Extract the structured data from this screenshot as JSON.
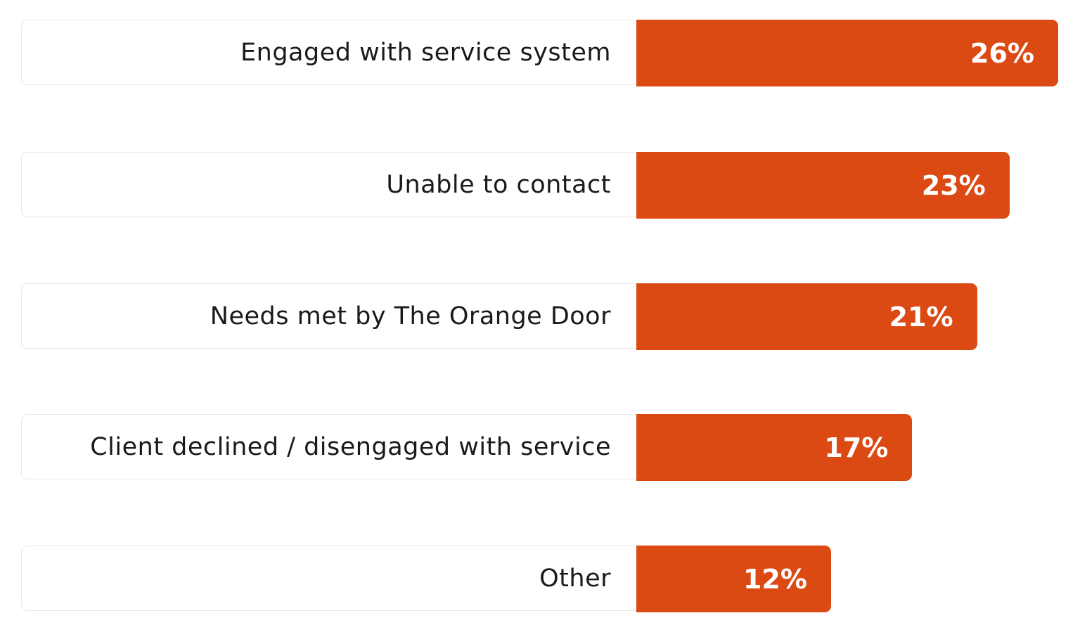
{
  "chart_data": {
    "type": "bar",
    "orientation": "horizontal",
    "categories": [
      "Engaged with service system",
      "Unable to contact",
      "Needs met by The Orange Door",
      "Client declined / disengaged with service",
      "Other"
    ],
    "values": [
      26,
      23,
      21,
      17,
      12
    ],
    "value_labels": [
      "26%",
      "23%",
      "21%",
      "17%",
      "12%"
    ],
    "unit": "%",
    "xlim": [
      0,
      26
    ],
    "grid": false,
    "bar_color": "#dc4a14"
  }
}
